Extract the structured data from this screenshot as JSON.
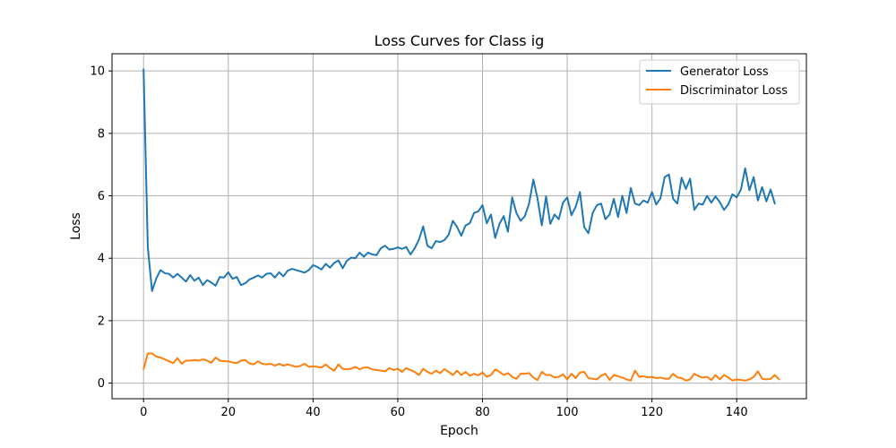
{
  "chart_data": {
    "type": "line",
    "title": "Loss Curves for Class ig",
    "xlabel": "Epoch",
    "ylabel": "Loss",
    "xlim": [
      -7.45,
      156.45
    ],
    "ylim": [
      -0.5,
      10.55
    ],
    "xticks": [
      0,
      20,
      40,
      60,
      80,
      100,
      120,
      140
    ],
    "yticks": [
      0,
      2,
      4,
      6,
      8,
      10
    ],
    "grid": true,
    "legend": "top-right",
    "series": [
      {
        "name": "Generator Loss",
        "color": "#1f77b4",
        "values": [
          10.05,
          4.35,
          2.95,
          3.35,
          3.62,
          3.52,
          3.5,
          3.38,
          3.5,
          3.38,
          3.25,
          3.46,
          3.28,
          3.38,
          3.14,
          3.3,
          3.22,
          3.12,
          3.4,
          3.38,
          3.55,
          3.34,
          3.4,
          3.14,
          3.2,
          3.32,
          3.38,
          3.45,
          3.38,
          3.5,
          3.52,
          3.38,
          3.55,
          3.42,
          3.6,
          3.66,
          3.62,
          3.58,
          3.54,
          3.62,
          3.78,
          3.72,
          3.64,
          3.82,
          3.7,
          3.85,
          3.93,
          3.68,
          3.92,
          4.02,
          4.0,
          4.18,
          4.05,
          4.18,
          4.12,
          4.1,
          4.32,
          4.4,
          4.28,
          4.3,
          4.35,
          4.3,
          4.36,
          4.12,
          4.32,
          4.6,
          5.02,
          4.4,
          4.32,
          4.55,
          4.52,
          4.58,
          4.75,
          5.2,
          5.0,
          4.72,
          5.05,
          5.12,
          5.45,
          5.5,
          5.7,
          5.12,
          5.4,
          4.65,
          5.1,
          5.35,
          4.85,
          5.95,
          5.45,
          5.2,
          5.35,
          5.75,
          6.52,
          5.9,
          5.05,
          5.98,
          5.1,
          5.4,
          5.25,
          5.78,
          5.95,
          5.38,
          5.65,
          6.12,
          5.0,
          4.8,
          5.45,
          5.7,
          5.75,
          5.25,
          5.4,
          5.9,
          5.32,
          6.0,
          5.45,
          6.25,
          5.75,
          5.7,
          5.85,
          5.78,
          6.12,
          5.72,
          5.92,
          6.6,
          6.68,
          5.9,
          5.75,
          6.58,
          6.22,
          6.55,
          5.55,
          5.75,
          5.72,
          6.0,
          5.78,
          5.98,
          5.8,
          5.55,
          5.72,
          6.05,
          5.95,
          6.2,
          6.88,
          6.18,
          6.6,
          5.85,
          6.28,
          5.82,
          6.2,
          5.75
        ]
      },
      {
        "name": "Discriminator Loss",
        "color": "#ff7f0e",
        "values": [
          0.45,
          0.95,
          0.95,
          0.85,
          0.82,
          0.76,
          0.7,
          0.64,
          0.8,
          0.62,
          0.72,
          0.72,
          0.74,
          0.72,
          0.76,
          0.72,
          0.65,
          0.82,
          0.72,
          0.7,
          0.7,
          0.66,
          0.64,
          0.72,
          0.74,
          0.63,
          0.6,
          0.7,
          0.62,
          0.6,
          0.62,
          0.56,
          0.62,
          0.56,
          0.6,
          0.56,
          0.52,
          0.55,
          0.62,
          0.52,
          0.54,
          0.52,
          0.5,
          0.6,
          0.48,
          0.4,
          0.6,
          0.46,
          0.44,
          0.46,
          0.52,
          0.44,
          0.5,
          0.5,
          0.44,
          0.42,
          0.4,
          0.38,
          0.48,
          0.42,
          0.46,
          0.36,
          0.48,
          0.42,
          0.36,
          0.26,
          0.46,
          0.36,
          0.3,
          0.4,
          0.32,
          0.45,
          0.36,
          0.26,
          0.4,
          0.26,
          0.36,
          0.24,
          0.3,
          0.25,
          0.34,
          0.2,
          0.26,
          0.44,
          0.36,
          0.26,
          0.32,
          0.2,
          0.14,
          0.3,
          0.3,
          0.32,
          0.18,
          0.1,
          0.36,
          0.26,
          0.26,
          0.18,
          0.2,
          0.28,
          0.12,
          0.3,
          0.16,
          0.34,
          0.36,
          0.16,
          0.14,
          0.12,
          0.24,
          0.3,
          0.1,
          0.26,
          0.22,
          0.18,
          0.12,
          0.08,
          0.4,
          0.2,
          0.22,
          0.18,
          0.2,
          0.16,
          0.18,
          0.14,
          0.14,
          0.3,
          0.18,
          0.16,
          0.08,
          0.12,
          0.3,
          0.22,
          0.18,
          0.2,
          0.1,
          0.26,
          0.12,
          0.26,
          0.18,
          0.08,
          0.12,
          0.1,
          0.08,
          0.12,
          0.2,
          0.38,
          0.14,
          0.12,
          0.14,
          0.26,
          0.12
        ]
      }
    ]
  }
}
